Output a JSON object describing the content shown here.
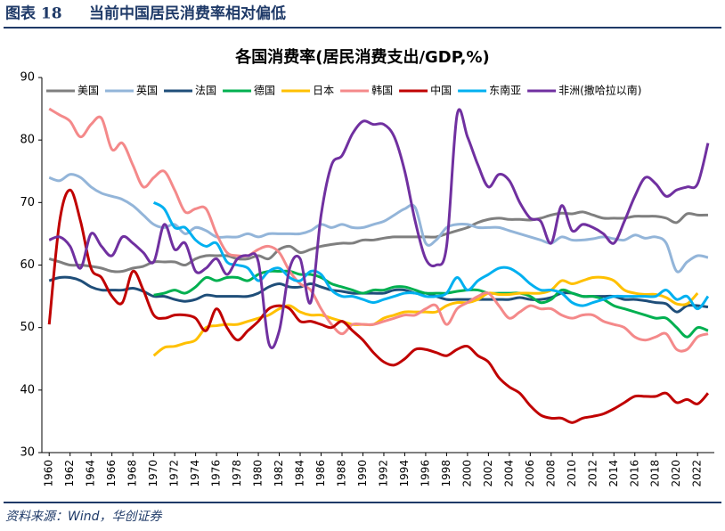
{
  "header": {
    "label": "图表 18",
    "title": "当前中国居民消费率相对偏低"
  },
  "footer": "资料来源：Wind，华创证券",
  "chart_data": {
    "type": "line",
    "title": "各国消费率(居民消费支出/GDP,%)",
    "x": [
      1960,
      1961,
      1962,
      1963,
      1964,
      1965,
      1966,
      1967,
      1968,
      1969,
      1970,
      1971,
      1972,
      1973,
      1974,
      1975,
      1976,
      1977,
      1978,
      1979,
      1980,
      1981,
      1982,
      1983,
      1984,
      1985,
      1986,
      1987,
      1988,
      1989,
      1990,
      1991,
      1992,
      1993,
      1994,
      1995,
      1996,
      1997,
      1998,
      1999,
      2000,
      2001,
      2002,
      2003,
      2004,
      2005,
      2006,
      2007,
      2008,
      2009,
      2010,
      2011,
      2012,
      2013,
      2014,
      2015,
      2016,
      2017,
      2018,
      2019,
      2020,
      2021,
      2022,
      2023
    ],
    "xlim": [
      1959.3,
      2023.6
    ],
    "xticks": [
      1960,
      1962,
      1964,
      1966,
      1968,
      1970,
      1972,
      1974,
      1976,
      1978,
      1980,
      1982,
      1984,
      1986,
      1988,
      1990,
      1992,
      1994,
      1996,
      1998,
      2000,
      2002,
      2004,
      2006,
      2008,
      2010,
      2012,
      2014,
      2016,
      2018,
      2020,
      2022
    ],
    "ylim": [
      30,
      90
    ],
    "yticks": [
      30,
      40,
      50,
      60,
      70,
      80,
      90
    ],
    "grid": false,
    "legend": "top",
    "series": [
      {
        "name": "美国",
        "color": "#7f7f7f",
        "values": [
          61,
          60.5,
          60,
          60,
          59.8,
          59.5,
          59,
          59,
          59.5,
          59.8,
          60.5,
          60.5,
          60.5,
          60,
          61,
          61.5,
          61.5,
          61.5,
          61,
          61,
          61.5,
          61,
          62.5,
          63,
          62,
          62.5,
          63,
          63.3,
          63.5,
          63.5,
          64,
          64,
          64.3,
          64.5,
          64.5,
          64.5,
          64.5,
          64.5,
          65,
          65.5,
          66,
          66.8,
          67.3,
          67.5,
          67.3,
          67.3,
          67.2,
          67.5,
          68,
          68.3,
          68.2,
          68.5,
          68,
          67.5,
          67.5,
          67.5,
          67.8,
          67.8,
          67.8,
          67.5,
          66.8,
          68.2,
          68,
          68
        ]
      },
      {
        "name": "英国",
        "color": "#93b5d9",
        "values": [
          74,
          73.5,
          74.5,
          74,
          72.5,
          71.5,
          71,
          70.5,
          69.5,
          68,
          66.5,
          66,
          66.5,
          65,
          66,
          65.5,
          64.5,
          64.5,
          64.5,
          65,
          64.5,
          65,
          65,
          65,
          65,
          65.5,
          66.5,
          66,
          66.5,
          66,
          66,
          66.5,
          67,
          68,
          69,
          69.2,
          63.5,
          64,
          66,
          66.5,
          66.5,
          66,
          66,
          66,
          65.5,
          65,
          64.5,
          64,
          63.5,
          64.5,
          64,
          64,
          64.2,
          64.5,
          64.2,
          64,
          64.8,
          64.3,
          64.5,
          63.5,
          59,
          60.5,
          61.5,
          61.2
        ]
      },
      {
        "name": "法国",
        "color": "#1f4e79",
        "values": [
          57.5,
          58,
          58,
          57.5,
          56.5,
          56,
          56,
          56,
          56.3,
          55.8,
          55,
          55,
          54.5,
          54.2,
          54.5,
          55.2,
          55,
          55,
          55,
          55,
          55.5,
          56.5,
          57,
          56.5,
          56.5,
          57,
          56.5,
          56,
          55.8,
          55.5,
          55.5,
          55.5,
          55.5,
          56,
          56,
          55.5,
          55.5,
          55,
          54.5,
          54.5,
          54.5,
          54.5,
          54.5,
          54.5,
          54.5,
          54.8,
          54.5,
          54.5,
          54.8,
          55.5,
          55.5,
          55,
          55,
          55,
          55,
          54.5,
          54.5,
          54.3,
          54,
          53.8,
          52.5,
          53.5,
          53.5,
          53.3
        ]
      },
      {
        "name": "德国",
        "color": "#00b050",
        "values": [
          null,
          null,
          null,
          null,
          null,
          null,
          null,
          null,
          null,
          null,
          55.2,
          55.5,
          56,
          55.5,
          56.5,
          58,
          57.5,
          58,
          58,
          57.5,
          58.5,
          59,
          59,
          59,
          58.5,
          58.5,
          58,
          57,
          56.5,
          56,
          55.5,
          56,
          56,
          56.5,
          56.5,
          56,
          55.5,
          55.5,
          55.5,
          55.8,
          56,
          56,
          55.5,
          55.5,
          55.5,
          55.5,
          55,
          54,
          54.5,
          56,
          55.5,
          55,
          55,
          54.5,
          53.5,
          53,
          52.5,
          52,
          51.5,
          51.5,
          50,
          48.5,
          50,
          49.5
        ]
      },
      {
        "name": "日本",
        "color": "#ffc000",
        "values": [
          null,
          null,
          null,
          null,
          null,
          null,
          null,
          null,
          null,
          null,
          45.5,
          46.8,
          47,
          47.5,
          48,
          50,
          50.3,
          50.5,
          50.5,
          51,
          51.5,
          52,
          53,
          53.5,
          52.5,
          52,
          52,
          51.5,
          51,
          50.5,
          50.5,
          50.5,
          51.5,
          52,
          52.5,
          52.5,
          52.5,
          52.5,
          53.5,
          54,
          54,
          54.5,
          55.5,
          55.3,
          55.3,
          55.5,
          55.5,
          55.5,
          56,
          57.5,
          57,
          57.5,
          58,
          58,
          57.5,
          56,
          55.5,
          55.3,
          55.3,
          54.8,
          53.8,
          53.8,
          55.5,
          null
        ]
      },
      {
        "name": "韩国",
        "color": "#f4898a",
        "values": [
          85,
          84,
          83,
          80.5,
          82.5,
          83.5,
          78.5,
          79.5,
          76,
          72.5,
          74,
          75,
          72,
          68.5,
          69,
          69,
          65,
          62,
          61.5,
          61.5,
          62.5,
          63,
          62,
          59,
          57,
          56,
          53,
          50.5,
          49,
          50.5,
          50.5,
          50.5,
          51,
          51.5,
          52,
          52,
          53,
          53.5,
          50.5,
          53,
          54,
          55,
          55.5,
          53.5,
          51.5,
          52.5,
          53.5,
          53,
          53,
          52,
          51.5,
          52,
          52,
          51,
          50.5,
          50,
          48.5,
          48,
          48.5,
          49,
          46.5,
          46.5,
          48.5,
          49
        ]
      },
      {
        "name": "中国",
        "color": "#c00000",
        "values": [
          50.5,
          67,
          72,
          67,
          59.5,
          58,
          55,
          54,
          59,
          56,
          52,
          51.5,
          52,
          52,
          51.5,
          49.5,
          53,
          50,
          48,
          49.5,
          51,
          53,
          53.5,
          53,
          51,
          51,
          50.5,
          50,
          51,
          49.5,
          48,
          46,
          44.5,
          44,
          45,
          46.5,
          46.5,
          46,
          45.5,
          46.5,
          47,
          45.5,
          44.5,
          42,
          40.5,
          39.5,
          37.5,
          36,
          35.5,
          35.5,
          34.8,
          35.5,
          35.8,
          36.2,
          37,
          38,
          39,
          39,
          39,
          39.5,
          38,
          38.5,
          37.8,
          39.5
        ]
      },
      {
        "name": "东南亚",
        "color": "#00b0f0",
        "values": [
          null,
          null,
          null,
          null,
          null,
          null,
          null,
          null,
          null,
          null,
          70,
          69,
          66,
          66,
          64,
          63,
          63.5,
          60.5,
          60,
          59.5,
          57.5,
          59,
          59.5,
          58,
          57.5,
          59,
          58.5,
          56,
          55,
          55,
          54.5,
          54,
          54.5,
          55,
          55.5,
          55.5,
          55,
          55,
          55.5,
          58,
          56,
          57.5,
          58.5,
          59.5,
          59.5,
          58.5,
          57,
          56,
          56,
          55.5,
          54,
          53.5,
          54,
          54.5,
          55,
          55,
          55,
          55,
          55,
          56,
          54.5,
          55,
          53,
          55
        ]
      },
      {
        "name": "非洲(撒哈拉以南)",
        "color": "#7030a0",
        "values": [
          64,
          64.5,
          63,
          59.5,
          65,
          63,
          61.5,
          64.5,
          63.5,
          62,
          60.5,
          66.5,
          62.5,
          63.5,
          59,
          59.5,
          61,
          58.5,
          61,
          61.5,
          60.5,
          47.5,
          49.5,
          59.5,
          61,
          54,
          68,
          76,
          77.5,
          81,
          83,
          82.5,
          82.5,
          80.5,
          75,
          67,
          61,
          60,
          63,
          84,
          80.5,
          76,
          72.5,
          74.5,
          73.5,
          70,
          67.5,
          67,
          63.5,
          69.5,
          65.5,
          66.5,
          66,
          65,
          63.5,
          67,
          71,
          74,
          73,
          71,
          72,
          72.5,
          73,
          79.5
        ]
      }
    ]
  }
}
